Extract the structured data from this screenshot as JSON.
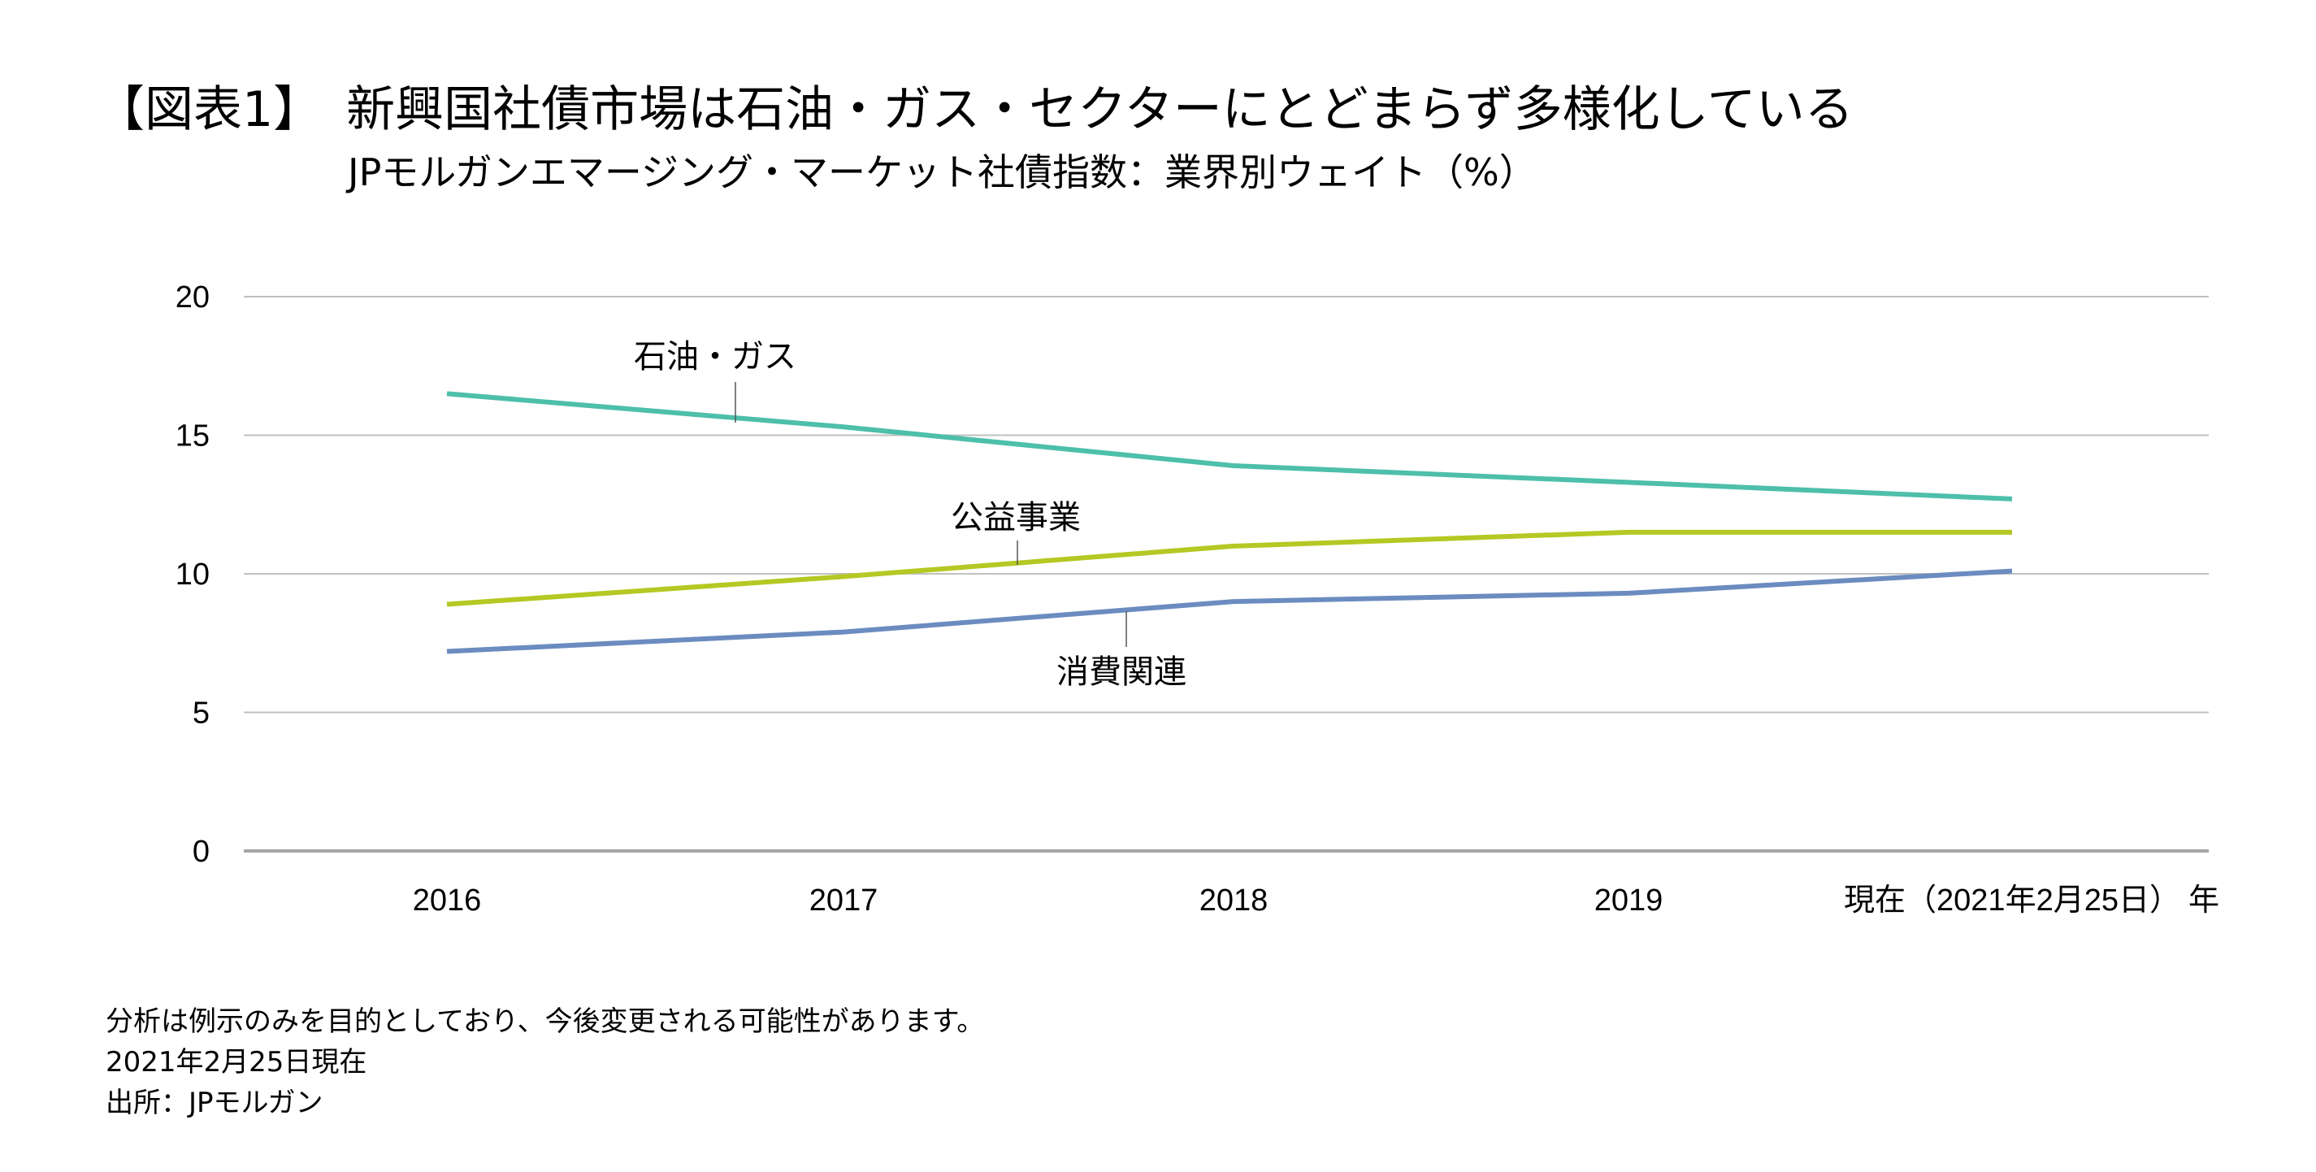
{
  "title": "【図表1】　新興国社債市場は石油・ガス・セクターにとどまらず多様化している",
  "subtitle": "JPモルガンエマージング・マーケット社債指数：業界別ウェイト（%）",
  "notes": [
    "分析は例示のみを目的としており、今後変更される可能性があります。",
    "2021年2月25日現在",
    "出所：JPモルガン"
  ],
  "chart_data": {
    "type": "line",
    "title": "JPモルガンエマージング・マーケット社債指数：業界別ウェイト（%）",
    "categories": [
      "2016",
      "2017",
      "2018",
      "2019",
      "現在（2021年2月25日）"
    ],
    "xlabel": "年",
    "ylabel": "",
    "ylim": [
      0,
      20
    ],
    "yticks": [
      0,
      5,
      10,
      15,
      20
    ],
    "grid": true,
    "legend": "inline labels",
    "series": [
      {
        "name": "石油・ガス",
        "color": "#4dbfaa",
        "values": [
          16.5,
          15.3,
          13.9,
          13.3,
          12.7
        ]
      },
      {
        "name": "公益事業",
        "color": "#b5c823",
        "values": [
          8.9,
          9.9,
          11.0,
          11.5,
          11.5
        ]
      },
      {
        "name": "消費関連",
        "color": "#6b8cc0",
        "values": [
          7.2,
          7.9,
          9.0,
          9.3,
          10.1
        ]
      }
    ]
  }
}
